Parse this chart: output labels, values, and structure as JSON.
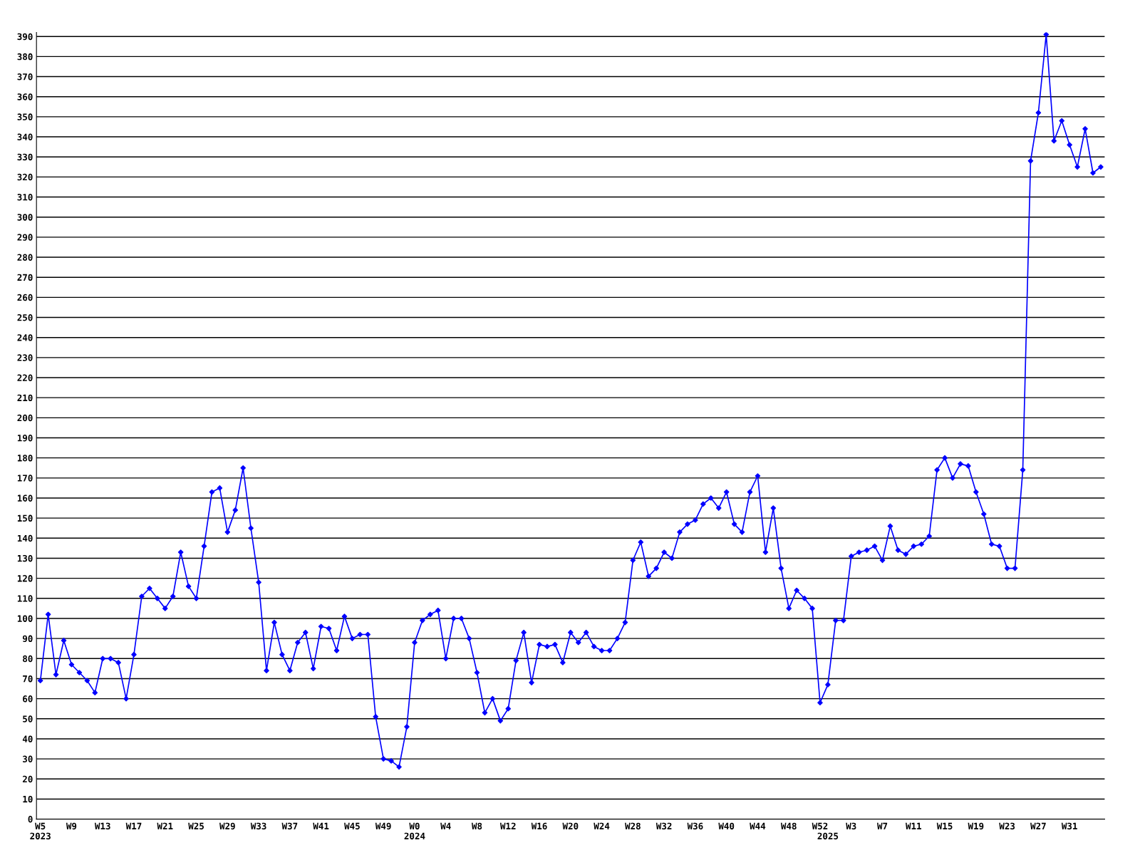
{
  "chart_data": {
    "type": "line",
    "categories": [
      "W5\n2023",
      null,
      null,
      null,
      "W9",
      null,
      null,
      null,
      "W13",
      null,
      null,
      null,
      "W17",
      null,
      null,
      null,
      "W21",
      null,
      null,
      null,
      "W25",
      null,
      null,
      null,
      "W29",
      null,
      null,
      null,
      "W33",
      null,
      null,
      null,
      "W37",
      null,
      null,
      null,
      "W41",
      null,
      null,
      null,
      "W45",
      null,
      null,
      null,
      "W49",
      null,
      null,
      null,
      "W0\n2024",
      null,
      null,
      null,
      "W4",
      null,
      null,
      null,
      "W8",
      null,
      null,
      null,
      "W12",
      null,
      null,
      null,
      "W16",
      null,
      null,
      null,
      "W20",
      null,
      null,
      null,
      "W24",
      null,
      null,
      null,
      "W28",
      null,
      null,
      null,
      "W32",
      null,
      null,
      null,
      "W36",
      null,
      null,
      null,
      "W40",
      null,
      null,
      null,
      "W44",
      null,
      null,
      null,
      "W48",
      null,
      null,
      null,
      "W52",
      "\n2025",
      null,
      null,
      "W3",
      null,
      null,
      null,
      "W7",
      null,
      null,
      null,
      "W11",
      null,
      null,
      null,
      "W15",
      null,
      null,
      null,
      "W19",
      null,
      null,
      null,
      "W23",
      null,
      null,
      null,
      "W27",
      null,
      null,
      null,
      "W31",
      null,
      null,
      null,
      null
    ],
    "series": [
      {
        "color": "#0000ff",
        "values": [
          69,
          102,
          72,
          89,
          77,
          73,
          69,
          63,
          80,
          80,
          78,
          60,
          82,
          111,
          115,
          110,
          105,
          111,
          133,
          116,
          110,
          136,
          163,
          165,
          143,
          154,
          175,
          145,
          118,
          74,
          98,
          82,
          74,
          88,
          93,
          75,
          96,
          95,
          84,
          101,
          90,
          92,
          92,
          51,
          30,
          29,
          26,
          46,
          88,
          99,
          102,
          104,
          80,
          100,
          100,
          90,
          73,
          53,
          60,
          49,
          55,
          79,
          93,
          68,
          87,
          86,
          87,
          78,
          93,
          88,
          93,
          86,
          84,
          84,
          90,
          98,
          129,
          138,
          121,
          125,
          133,
          130,
          143,
          147,
          149,
          157,
          160,
          155,
          163,
          147,
          143,
          163,
          171,
          133,
          155,
          125,
          105,
          114,
          110,
          105,
          58,
          67,
          99,
          99,
          131,
          133,
          134,
          136,
          129,
          146,
          134,
          132,
          136,
          137,
          141,
          174,
          180,
          170,
          177,
          176,
          163,
          152,
          137,
          136,
          125,
          125,
          174,
          328,
          352,
          391,
          338,
          348,
          336,
          325,
          344,
          322,
          325
        ]
      }
    ],
    "ylim": [
      0,
      392
    ],
    "yticks": [
      0,
      10,
      20,
      30,
      40,
      50,
      60,
      70,
      80,
      90,
      100,
      110,
      120,
      130,
      140,
      150,
      160,
      170,
      180,
      190,
      200,
      210,
      220,
      230,
      240,
      250,
      260,
      270,
      280,
      290,
      300,
      310,
      320,
      330,
      340,
      350,
      360,
      370,
      380,
      390
    ],
    "grid": "y",
    "marker": "diamond",
    "line_style": "solid"
  }
}
